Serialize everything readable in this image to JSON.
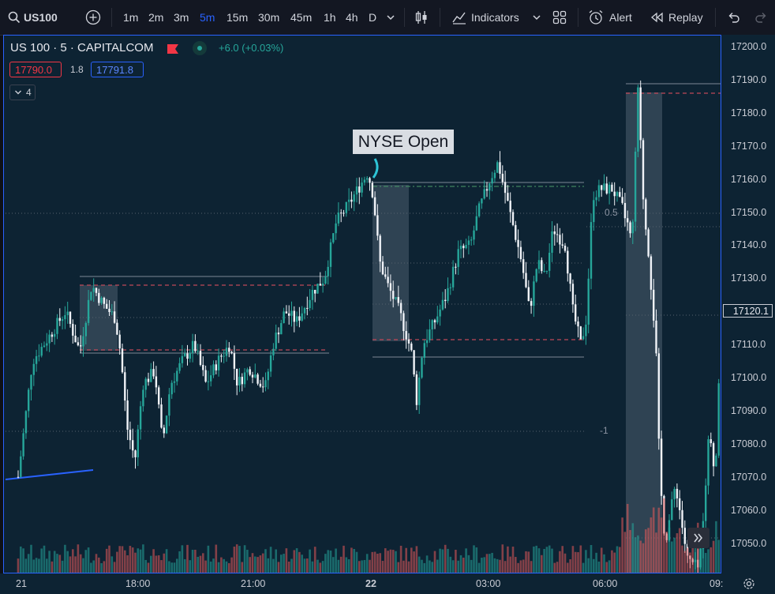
{
  "toolbar": {
    "symbol": "US100",
    "timeframes": [
      "1m",
      "2m",
      "3m",
      "5m",
      "15m",
      "30m",
      "45m",
      "1h",
      "4h",
      "D"
    ],
    "active_timeframe": "5m",
    "indicators_label": "Indicators",
    "alert_label": "Alert",
    "replay_label": "Replay"
  },
  "legend": {
    "title": "US 100 · 5 · CAPITALCOM",
    "change": "+6.0 (+0.03%)",
    "bid": "17790.0",
    "spread": "1.8",
    "ask": "17791.8",
    "collapse_count": "4"
  },
  "annotation": {
    "text": "NYSE Open"
  },
  "fib_labels": {
    "half": "0.5",
    "minus_one": "-1"
  },
  "price_axis": {
    "labels": [
      "17200.0",
      "17190.0",
      "17180.0",
      "17170.0",
      "17160.0",
      "17150.0",
      "17140.0",
      "17130.0",
      "17120.0",
      "17110.0",
      "17100.0",
      "17090.0",
      "17080.0",
      "17070.0",
      "17060.0",
      "17050.0"
    ],
    "current_price": "17120.1"
  },
  "time_axis": {
    "labels": [
      "21",
      "18:00",
      "21:00",
      "22",
      "03:00",
      "06:00",
      "09:"
    ]
  },
  "colors": {
    "up": "#26a69a",
    "down": "#ffffff",
    "accent": "#2962ff",
    "bid": "#f23645"
  },
  "icons": {
    "scroll": "double-chevron-right-icon",
    "settings": "gear-icon"
  }
}
